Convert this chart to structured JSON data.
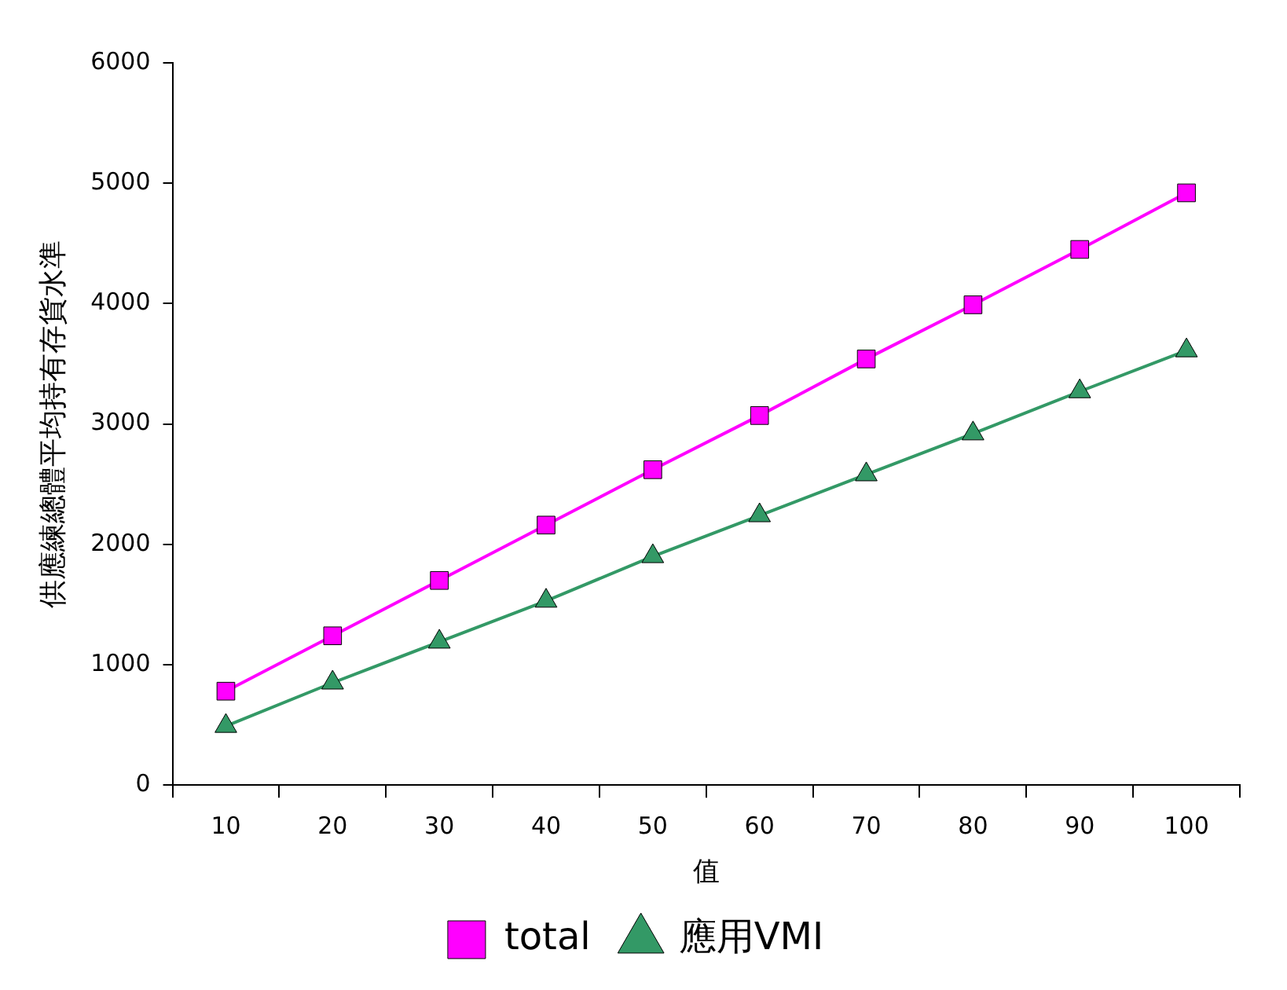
{
  "chart_data": {
    "type": "line",
    "xlabel": "值",
    "ylabel": "供應練總體平均持有存貨水準",
    "categories": [
      "10",
      "20",
      "30",
      "40",
      "50",
      "60",
      "70",
      "80",
      "90",
      "100"
    ],
    "series": [
      {
        "name": "total",
        "color": "#ff00ff",
        "marker": "square",
        "values": [
          780,
          1240,
          1700,
          2160,
          2620,
          3070,
          3540,
          3990,
          4450,
          4920
        ]
      },
      {
        "name": "應用VMI",
        "color": "#339966",
        "marker": "triangle",
        "values": [
          490,
          850,
          1190,
          1530,
          1900,
          2240,
          2580,
          2920,
          3270,
          3610
        ]
      }
    ],
    "ylim": [
      0,
      6000
    ],
    "yticks": [
      0,
      1000,
      2000,
      3000,
      4000,
      5000,
      6000
    ],
    "grid": false,
    "legend": "bottom"
  }
}
